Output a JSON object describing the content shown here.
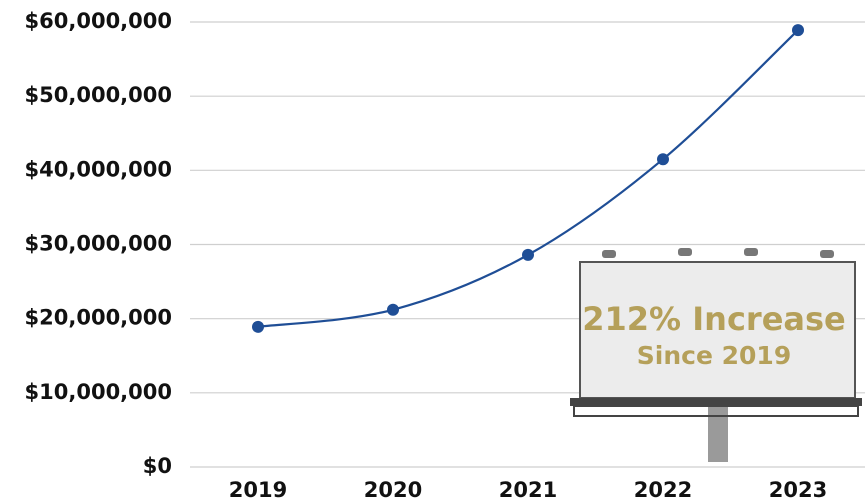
{
  "chart_data": {
    "type": "line",
    "categories": [
      "2019",
      "2020",
      "2021",
      "2022",
      "2023"
    ],
    "values": [
      18900000,
      21200000,
      28600000,
      41500000,
      58900000
    ],
    "color": "#1f4e96",
    "ylim": [
      0,
      60000000
    ],
    "yticks": [
      {
        "value": 0,
        "label": "$0"
      },
      {
        "value": 10000000,
        "label": "$10,000,000"
      },
      {
        "value": 20000000,
        "label": "$20,000,000"
      },
      {
        "value": 30000000,
        "label": "$30,000,000"
      },
      {
        "value": 40000000,
        "label": "$40,000,000"
      },
      {
        "value": 50000000,
        "label": "$50,000,000"
      },
      {
        "value": 60000000,
        "label": "$60,000,000"
      }
    ],
    "grid": true,
    "annotations": [
      "212% Increase",
      "Since 2019"
    ]
  }
}
